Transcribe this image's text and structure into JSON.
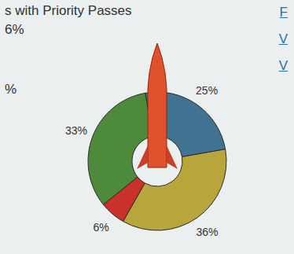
{
  "chart_data": {
    "type": "pie",
    "title": "s with Priority Passes",
    "categories": [
      null,
      null,
      null,
      null
    ],
    "values": [
      25,
      36,
      6,
      33
    ],
    "value_labels": [
      "25%",
      "36%",
      "6%",
      "33%"
    ],
    "colors": [
      "#3f7391",
      "#b8a53c",
      "#c9312a",
      "#4d8a3c"
    ],
    "data_labels": true,
    "annotations": [
      {
        "text": "6%"
      },
      {
        "text": "%"
      },
      {
        "text": "F"
      },
      {
        "text": "V"
      },
      {
        "text": "V"
      }
    ]
  }
}
